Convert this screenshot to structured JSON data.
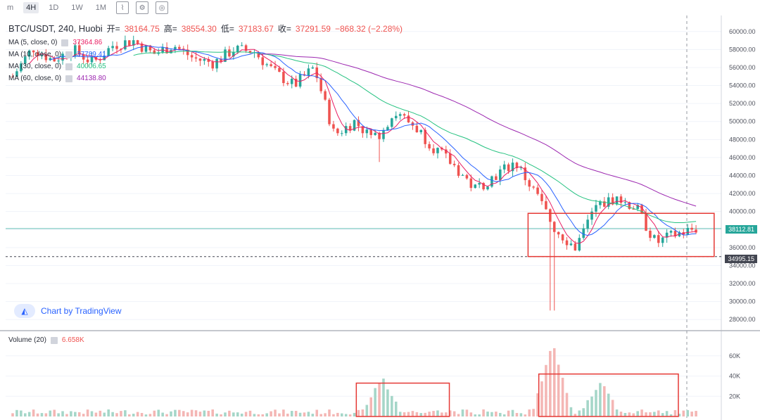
{
  "toolbar": {
    "items": [
      "m",
      "4H",
      "1D",
      "1W",
      "1M"
    ],
    "active": "4H"
  },
  "legend": {
    "symbol": "BTC/USDT, 240, Huobi",
    "open_label": "开=",
    "open": "38164.75",
    "high_label": "高=",
    "high": "38554.30",
    "low_label": "低=",
    "low": "37183.67",
    "close_label": "收=",
    "close": "37291.59",
    "change": "−868.32 (−2.28%)"
  },
  "ma": [
    {
      "label": "MA (5, close, 0)",
      "value": "37364.86",
      "color": "#e91e63"
    },
    {
      "label": "MA (10, close, 0)",
      "value": "37789.41",
      "color": "#2962ff"
    },
    {
      "label": "MA (30, close, 0)",
      "value": "40006.65",
      "color": "#26c281"
    },
    {
      "label": "MA (60, close, 0)",
      "value": "44138.80",
      "color": "#9c27b0"
    }
  ],
  "watermark": "Chart by TradingView",
  "volume_legend": {
    "label": "Volume (20)",
    "value": "6.658K"
  },
  "price_tags": {
    "current": "38112.81",
    "marker": "34995.15"
  },
  "chart_data": {
    "type": "candlestick",
    "price_axis": {
      "ylim": [
        27000,
        61000
      ],
      "ticks": [
        28000,
        30000,
        32000,
        34000,
        36000,
        38000,
        40000,
        42000,
        44000,
        46000,
        48000,
        50000,
        52000,
        54000,
        56000,
        58000,
        60000
      ]
    },
    "volume_axis": {
      "ylim": [
        0,
        80000
      ],
      "ticks": [
        20000,
        40000,
        60000
      ],
      "tick_labels": [
        "20K",
        "40K",
        "60K"
      ]
    },
    "colors": {
      "up": "#26a69a",
      "down": "#ef5350",
      "up_vol": "#a5d6c8",
      "down_vol": "#f4b6b4"
    },
    "close_anchors": [
      55000,
      58200,
      56800,
      58000,
      56500,
      58500,
      59000,
      57500,
      58500,
      57000,
      56500,
      58000,
      57800,
      55500,
      54000,
      56000,
      48500,
      50000,
      48000,
      51000,
      49500,
      47000,
      45000,
      42500,
      44000,
      45500,
      42000,
      38000,
      36000,
      40500,
      41500,
      40500,
      36500,
      37500,
      38112
    ],
    "ma_levels": {
      "ma30": [
        56000,
        57000,
        57500,
        57800,
        58000,
        57700,
        57000,
        55500,
        53000,
        50500,
        48500,
        46500,
        44000,
        41500,
        40000
      ],
      "ma60": [
        53000,
        55000,
        56500,
        57500,
        58000,
        57800,
        57000,
        55500,
        53500,
        51500,
        49000,
        46500,
        43800
      ]
    },
    "volume_spikes": [
      {
        "at": 0.54,
        "value": 37000
      },
      {
        "at": 0.79,
        "value": 72000
      },
      {
        "at": 0.86,
        "value": 33000
      }
    ],
    "annotations": [
      {
        "type": "box",
        "pane": "price",
        "x0": 0.73,
        "x1": 0.99,
        "y0": 35000,
        "y1": 39800,
        "color": "#e53935"
      },
      {
        "type": "box",
        "pane": "volume",
        "x0": 0.49,
        "x1": 0.62,
        "y0": 0,
        "y1": 33000,
        "color": "#e53935"
      },
      {
        "type": "box",
        "pane": "volume",
        "x0": 0.745,
        "x1": 0.94,
        "y0": 0,
        "y1": 42000,
        "color": "#e53935"
      }
    ]
  }
}
